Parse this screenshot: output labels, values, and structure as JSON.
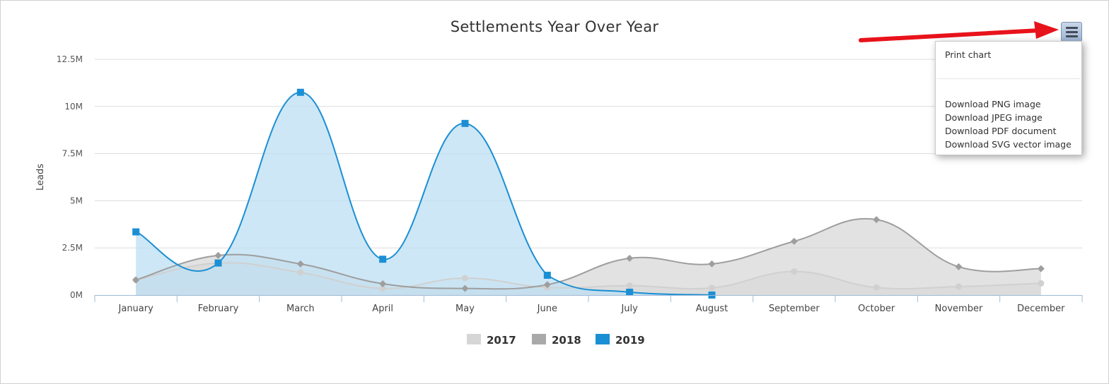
{
  "chart_data": {
    "type": "area",
    "title": "Settlements Year Over Year",
    "ylabel": "Leads",
    "xlabel": "",
    "categories": [
      "January",
      "February",
      "March",
      "April",
      "May",
      "June",
      "July",
      "August",
      "September",
      "October",
      "November",
      "December"
    ],
    "ylim": [
      0,
      12500000
    ],
    "yticks": [
      0,
      2500000,
      5000000,
      7500000,
      10000000,
      12500000
    ],
    "ytick_labels": [
      "0M",
      "2.5M",
      "5M",
      "7.5M",
      "10M",
      "12.5M"
    ],
    "grid": true,
    "legend_position": "bottom-center",
    "series": [
      {
        "name": "2017",
        "color": "#d0d0d0",
        "fill": "#e8e8e8",
        "marker": "circle",
        "values": [
          800000,
          1700000,
          1200000,
          350000,
          900000,
          400000,
          500000,
          380000,
          1250000,
          400000,
          450000,
          620000
        ]
      },
      {
        "name": "2018",
        "color": "#9e9e9e",
        "fill": "#cfcfcf",
        "marker": "diamond",
        "values": [
          800000,
          2100000,
          1650000,
          600000,
          350000,
          550000,
          1950000,
          1650000,
          2850000,
          4000000,
          1500000,
          1400000
        ]
      },
      {
        "name": "2019",
        "color": "#1b8fd4",
        "fill": "#bfe0f4",
        "marker": "square",
        "values": [
          3350000,
          1700000,
          10750000,
          1900000,
          9100000,
          1050000,
          150000,
          0,
          null,
          null,
          null,
          null
        ]
      }
    ]
  },
  "export_menu": {
    "items": [
      "Print chart",
      "Download PNG image",
      "Download JPEG image",
      "Download PDF document",
      "Download SVG vector image"
    ]
  },
  "colors": {
    "arrow": "#e8121b",
    "axis": "#9fbad6",
    "grid": "#dcdcdc"
  },
  "icons": {
    "menu_button": "hamburger-menu-icon",
    "annotation": "red-arrow-icon"
  }
}
